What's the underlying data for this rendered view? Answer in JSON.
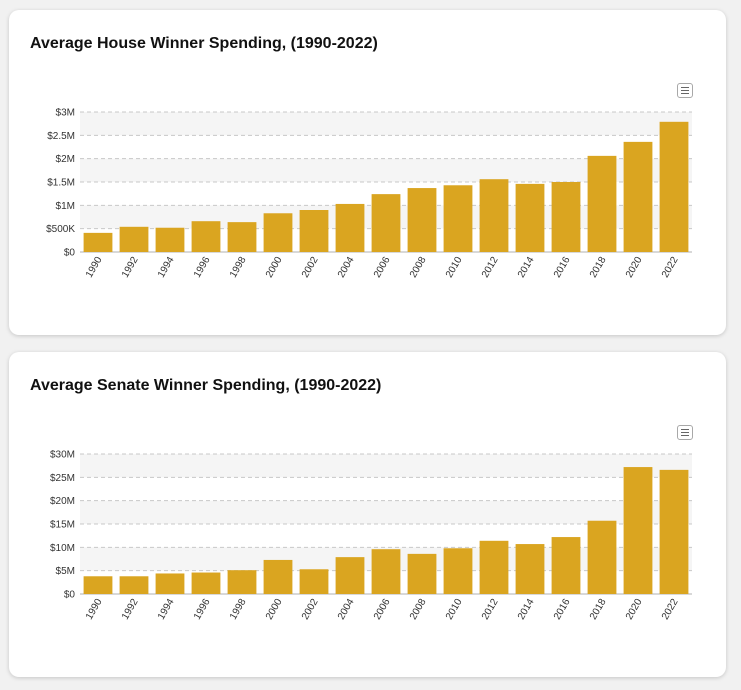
{
  "theme": {
    "bar_color": "#DAA520",
    "band_color": "#f5f5f5",
    "grid_color": "#c8c8c8"
  },
  "house": {
    "title": "Average House Winner Spending, (1990-2022)",
    "menu_icon": "hamburger-menu-icon"
  },
  "senate": {
    "title": "Average Senate Winner Spending, (1990-2022)",
    "menu_icon": "hamburger-menu-icon"
  },
  "chart_data": [
    {
      "type": "bar",
      "title": "Average House Winner Spending, (1990-2022)",
      "categories": [
        "1990",
        "1992",
        "1994",
        "1996",
        "1998",
        "2000",
        "2002",
        "2004",
        "2006",
        "2008",
        "2010",
        "2012",
        "2014",
        "2016",
        "2018",
        "2020",
        "2022"
      ],
      "values": [
        410000,
        540000,
        520000,
        660000,
        640000,
        830000,
        900000,
        1030000,
        1240000,
        1370000,
        1430000,
        1560000,
        1460000,
        1500000,
        2060000,
        2360000,
        2790000
      ],
      "xlabel": "",
      "ylabel": "",
      "ylim": [
        0,
        3000000
      ],
      "yticks": [
        0,
        500000,
        1000000,
        1500000,
        2000000,
        2500000,
        3000000
      ],
      "ytick_labels": [
        "$0",
        "$500K",
        "$1M",
        "$1.5M",
        "$2M",
        "$2.5M",
        "$3M"
      ],
      "grid": true,
      "legend": "none"
    },
    {
      "type": "bar",
      "title": "Average Senate Winner Spending, (1990-2022)",
      "categories": [
        "1990",
        "1992",
        "1994",
        "1996",
        "1998",
        "2000",
        "2002",
        "2004",
        "2006",
        "2008",
        "2010",
        "2012",
        "2014",
        "2016",
        "2018",
        "2020",
        "2022"
      ],
      "values": [
        3800000,
        3800000,
        4400000,
        4600000,
        5100000,
        7300000,
        5300000,
        7900000,
        9600000,
        8600000,
        9800000,
        11400000,
        10700000,
        12200000,
        15700000,
        27200000,
        26600000
      ],
      "xlabel": "",
      "ylabel": "",
      "ylim": [
        0,
        30000000
      ],
      "yticks": [
        0,
        5000000,
        10000000,
        15000000,
        20000000,
        25000000,
        30000000
      ],
      "ytick_labels": [
        "$0",
        "$5M",
        "$10M",
        "$15M",
        "$20M",
        "$25M",
        "$30M"
      ],
      "grid": true,
      "legend": "none"
    }
  ]
}
